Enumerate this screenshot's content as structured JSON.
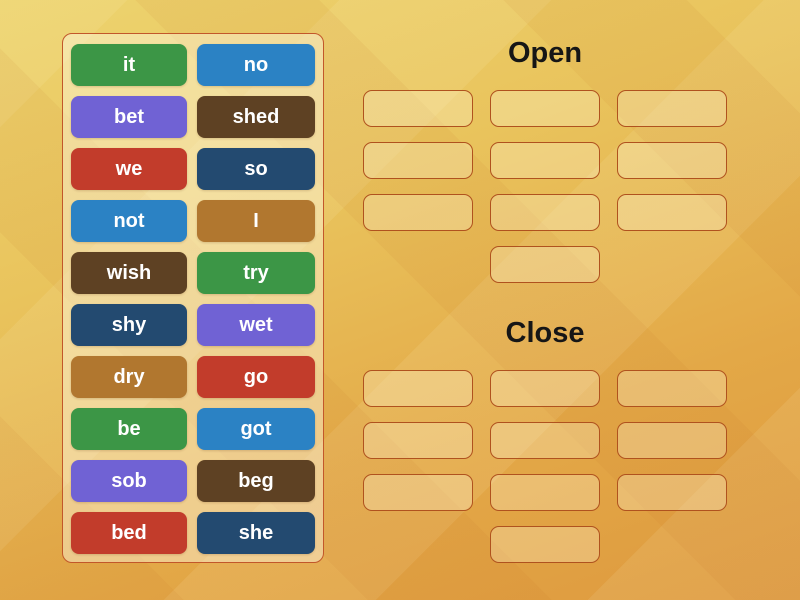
{
  "word_bank": {
    "tiles": [
      {
        "label": "it",
        "color": "green"
      },
      {
        "label": "no",
        "color": "blue"
      },
      {
        "label": "bet",
        "color": "purple"
      },
      {
        "label": "shed",
        "color": "brown"
      },
      {
        "label": "we",
        "color": "red"
      },
      {
        "label": "so",
        "color": "navy"
      },
      {
        "label": "not",
        "color": "blue"
      },
      {
        "label": "I",
        "color": "tan"
      },
      {
        "label": "wish",
        "color": "brown"
      },
      {
        "label": "try",
        "color": "green"
      },
      {
        "label": "shy",
        "color": "navy"
      },
      {
        "label": "wet",
        "color": "purple"
      },
      {
        "label": "dry",
        "color": "tan"
      },
      {
        "label": "go",
        "color": "red"
      },
      {
        "label": "be",
        "color": "green"
      },
      {
        "label": "got",
        "color": "blue"
      },
      {
        "label": "sob",
        "color": "purple"
      },
      {
        "label": "beg",
        "color": "brown"
      },
      {
        "label": "bed",
        "color": "red"
      },
      {
        "label": "she",
        "color": "navy"
      }
    ]
  },
  "groups": [
    {
      "title": "Open",
      "slot_rows": [
        3,
        3,
        3,
        1
      ]
    },
    {
      "title": "Close",
      "slot_rows": [
        3,
        3,
        3,
        1
      ]
    }
  ],
  "palette": {
    "green": "#3c9646",
    "blue": "#2b82c4",
    "purple": "#7062d4",
    "brown": "#5e4123",
    "red": "#c23c2b",
    "navy": "#234a70",
    "tan": "#b1772f",
    "panel_border": "#c2572a",
    "slot_border": "#b0521e",
    "title_color": "#161616"
  }
}
